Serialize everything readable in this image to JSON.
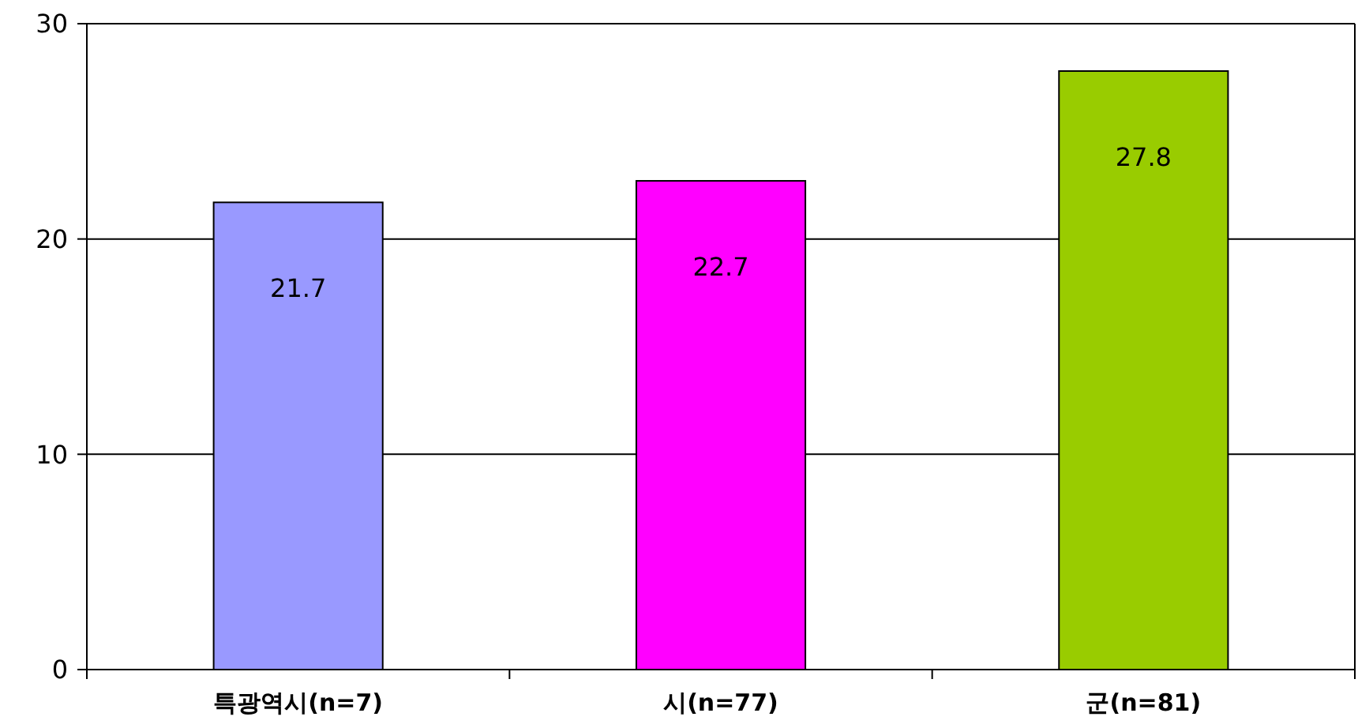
{
  "chart_data": {
    "type": "bar",
    "categories": [
      "특광역시(n=7)",
      "시(n=77)",
      "군(n=81)"
    ],
    "values": [
      21.7,
      22.7,
      27.8
    ],
    "colors": [
      "#9999ff",
      "#ff00ff",
      "#99cc00"
    ],
    "ylim": [
      0,
      30
    ],
    "yticks": [
      0,
      10,
      20,
      30
    ],
    "grid": "y",
    "data_labels": true
  }
}
